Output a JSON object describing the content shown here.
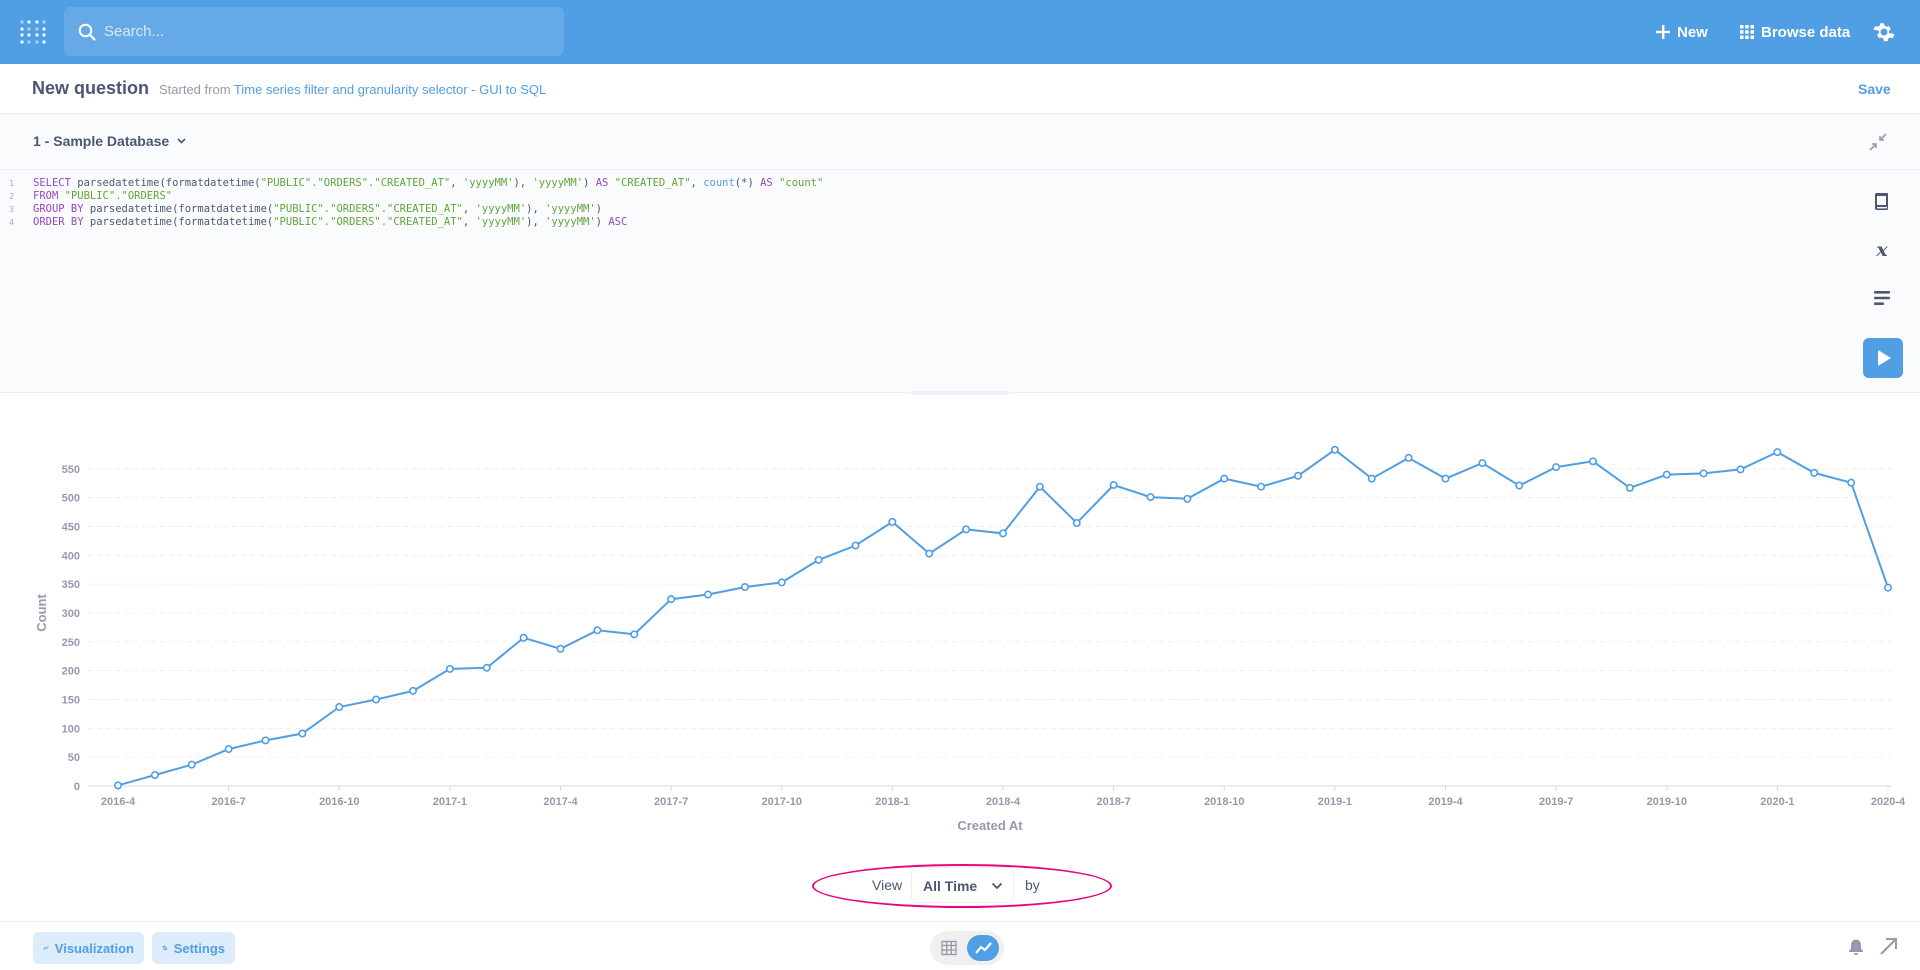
{
  "navbar": {
    "search_placeholder": "Search...",
    "new_label": "New",
    "browse_label": "Browse data",
    "icons": [
      "metabase-logo-icon",
      "search-icon",
      "plus-icon",
      "grid-icon",
      "gear-icon"
    ]
  },
  "header": {
    "title": "New question",
    "started_from": "Started from",
    "source_link": "Time series filter and granularity selector - GUI to SQL",
    "save_label": "Save"
  },
  "database": {
    "selected": "1 - Sample Database"
  },
  "editor": {
    "lines": [
      {
        "num": "1"
      },
      {
        "num": "2"
      },
      {
        "num": "3"
      },
      {
        "num": "4"
      }
    ],
    "tokens": {
      "select": "SELECT",
      "pdt": "parsedatetime(formatdatetime(",
      "col": "\"PUBLIC\".\"ORDERS\".\"CREATED_AT\"",
      "comma_sp": ", ",
      "fmt": "'yyyyMM'",
      "close1": "), ",
      "close2": ")",
      "as": "AS",
      "alias_created": "\"CREATED_AT\"",
      "count_fn": "count",
      "star": "(*)",
      "alias_count": "\"count\"",
      "from": "FROM",
      "table": "\"PUBLIC\".\"ORDERS\"",
      "group_by": "GROUP BY",
      "order_by": "ORDER BY",
      "asc": "ASC"
    }
  },
  "chart_data": {
    "type": "line",
    "xlabel": "Created At",
    "ylabel": "Count",
    "ylim": [
      0,
      600
    ],
    "yticks": [
      0,
      50,
      100,
      150,
      200,
      250,
      300,
      350,
      400,
      450,
      500,
      550
    ],
    "xtick_labels": [
      "2016-4",
      "2016-7",
      "2016-10",
      "2017-1",
      "2017-4",
      "2017-7",
      "2017-10",
      "2018-1",
      "2018-4",
      "2018-7",
      "2018-10",
      "2019-1",
      "2019-4",
      "2019-7",
      "2019-10",
      "2020-1",
      "2020-4"
    ],
    "series": [
      {
        "values": [
          1,
          19,
          37,
          64,
          79,
          91,
          137,
          150,
          165,
          203,
          205,
          257,
          238,
          270,
          263,
          324,
          332,
          345,
          353,
          392,
          417,
          458,
          403,
          445,
          438,
          519,
          456,
          522,
          501,
          498,
          533,
          519,
          538,
          583,
          533,
          569,
          533,
          560,
          521,
          553,
          563,
          517,
          540,
          542,
          549,
          579,
          543,
          526,
          344
        ]
      }
    ],
    "grid": "horizontal dashed",
    "line_color": "#509ee3"
  },
  "viewby": {
    "view_label": "View",
    "range": "All Time",
    "by_label": "by"
  },
  "footer": {
    "visualization_label": "Visualization",
    "settings_label": "Settings"
  }
}
